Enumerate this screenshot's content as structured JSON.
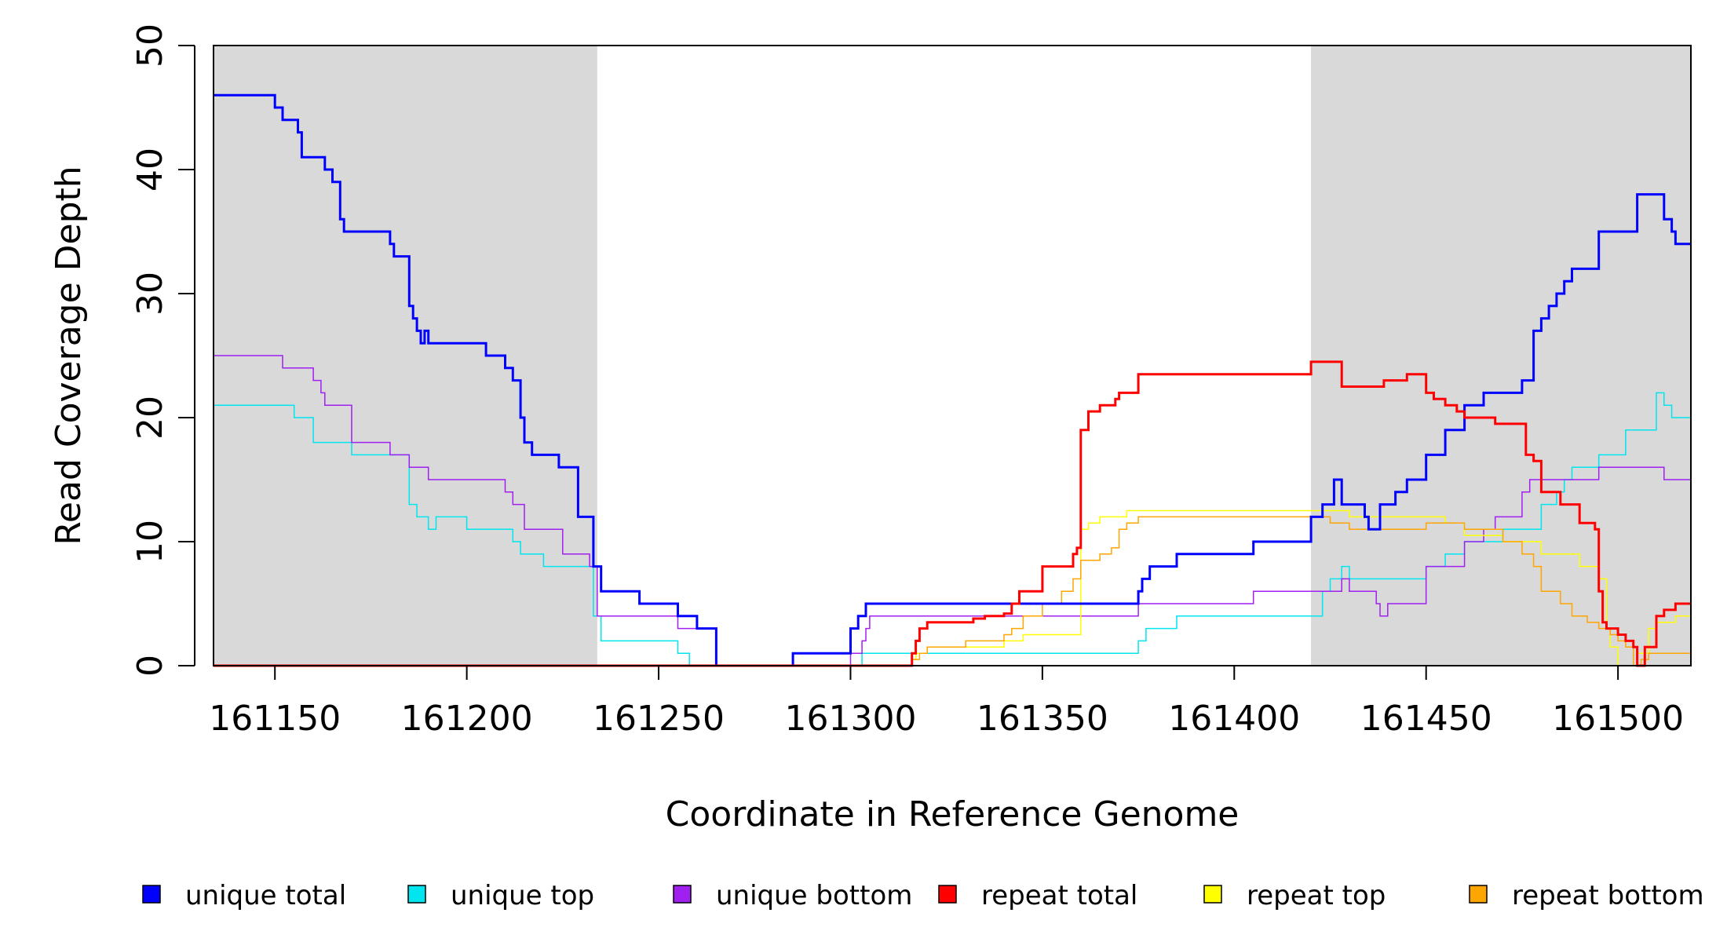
{
  "chart_data": {
    "type": "line",
    "step": true,
    "title": "",
    "xlabel": "Coordinate in Reference Genome",
    "ylabel": "Read Coverage Depth",
    "xlim": [
      161134,
      161519
    ],
    "ylim": [
      0,
      50
    ],
    "xticks": [
      161150,
      161200,
      161250,
      161300,
      161350,
      161400,
      161450,
      161500
    ],
    "yticks": [
      0,
      10,
      20,
      30,
      40,
      50
    ],
    "shaded_regions": [
      {
        "x0": 161134,
        "x1": 161234,
        "color": "#d9d9d9"
      },
      {
        "x0": 161420,
        "x1": 161519,
        "color": "#d9d9d9"
      }
    ],
    "legend_position": "bottom",
    "series": [
      {
        "name": "unique total",
        "color": "#0000ff",
        "width": 3,
        "x": [
          161134,
          161150,
          161152,
          161156,
          161157,
          161163,
          161165,
          161167,
          161168,
          161170,
          161175,
          161180,
          161181,
          161185,
          161186,
          161187,
          161188,
          161189,
          161190,
          161192,
          161205,
          161210,
          161212,
          161214,
          161215,
          161217,
          161224,
          161229,
          161233,
          161235,
          161240,
          161245,
          161250,
          161255,
          161260,
          161265,
          161270,
          161275,
          161285,
          161290,
          161300,
          161302,
          161303,
          161304,
          161305,
          161310,
          161320,
          161330,
          161340,
          161350,
          161360,
          161370,
          161375,
          161376,
          161377,
          161378,
          161380,
          161385,
          161390,
          161395,
          161400,
          161405,
          161410,
          161415,
          161420,
          161423,
          161424,
          161426,
          161428,
          161430,
          161434,
          161435,
          161438,
          161439,
          161440,
          161442,
          161445,
          161450,
          161455,
          161460,
          161465,
          161470,
          161475,
          161477,
          161478,
          161480,
          161482,
          161484,
          161486,
          161488,
          161490,
          161495,
          161500,
          161505,
          161510,
          161512,
          161514,
          161515,
          161519
        ],
        "y": [
          46,
          45,
          44,
          43,
          41,
          40,
          39,
          36,
          35,
          35,
          35,
          34,
          33,
          29,
          28,
          27,
          26,
          27,
          26,
          26,
          25,
          24,
          23,
          20,
          18,
          17,
          16,
          12,
          8,
          6,
          6,
          5,
          5,
          4,
          3,
          0,
          0,
          0,
          1,
          1,
          3,
          4,
          4,
          5,
          5,
          5,
          5,
          5,
          5,
          5,
          5,
          5,
          6,
          7,
          7,
          8,
          8,
          9,
          9,
          9,
          9,
          10,
          10,
          10,
          12,
          13,
          13,
          15,
          13,
          13,
          12,
          11,
          13,
          13,
          13,
          14,
          15,
          17,
          19,
          21,
          22,
          22,
          23,
          23,
          27,
          28,
          29,
          30,
          31,
          32,
          32,
          35,
          35,
          38,
          38,
          36,
          35,
          34,
          34
        ]
      },
      {
        "name": "unique top",
        "color": "#00e5ee",
        "width": 1.5,
        "x": [
          161134,
          161150,
          161155,
          161160,
          161165,
          161170,
          161180,
          161185,
          161187,
          161190,
          161192,
          161200,
          161210,
          161212,
          161214,
          161215,
          161220,
          161225,
          161233,
          161235,
          161240,
          161250,
          161255,
          161258,
          161265,
          161285,
          161300,
          161303,
          161304,
          161310,
          161320,
          161330,
          161340,
          161350,
          161360,
          161370,
          161375,
          161377,
          161380,
          161385,
          161390,
          161400,
          161405,
          161410,
          161415,
          161420,
          161423,
          161425,
          161428,
          161430,
          161435,
          161440,
          161445,
          161450,
          161455,
          161460,
          161470,
          161475,
          161478,
          161480,
          161484,
          161486,
          161488,
          161495,
          161502,
          161510,
          161512,
          161514,
          161519
        ],
        "y": [
          21,
          21,
          20,
          18,
          18,
          17,
          17,
          13,
          12,
          11,
          12,
          11,
          11,
          10,
          9,
          9,
          8,
          8,
          4,
          2,
          2,
          2,
          1,
          0,
          0,
          0,
          0,
          1,
          1,
          1,
          1,
          1,
          1,
          1,
          1,
          1,
          2,
          3,
          3,
          4,
          4,
          4,
          4,
          4,
          4,
          4,
          6,
          7,
          8,
          7,
          7,
          7,
          7,
          8,
          9,
          10,
          11,
          11,
          11,
          13,
          14,
          15,
          16,
          17,
          19,
          22,
          21,
          20,
          19
        ]
      },
      {
        "name": "unique bottom",
        "color": "#a020f0",
        "width": 1.5,
        "x": [
          161134,
          161150,
          161152,
          161155,
          161160,
          161162,
          161163,
          161165,
          161170,
          161175,
          161180,
          161185,
          161190,
          161200,
          161205,
          161210,
          161212,
          161214,
          161215,
          161225,
          161232,
          161234,
          161250,
          161255,
          161260,
          161265,
          161285,
          161300,
          161303,
          161304,
          161305,
          161320,
          161350,
          161375,
          161378,
          161380,
          161400,
          161405,
          161410,
          161420,
          161424,
          161427,
          161428,
          161430,
          161435,
          161437,
          161438,
          161440,
          161445,
          161450,
          161460,
          161465,
          161468,
          161470,
          161475,
          161477,
          161478,
          161480,
          161490,
          161495,
          161500,
          161505,
          161510,
          161512,
          161519
        ],
        "y": [
          25,
          25,
          24,
          24,
          23,
          22,
          21,
          21,
          18,
          18,
          17,
          16,
          15,
          15,
          15,
          14,
          13,
          13,
          11,
          9,
          8,
          4,
          4,
          3,
          3,
          0,
          0,
          1,
          2,
          3,
          4,
          4,
          4,
          5,
          5,
          5,
          5,
          6,
          6,
          6,
          6,
          6,
          7,
          6,
          6,
          5,
          4,
          5,
          5,
          8,
          10,
          11,
          12,
          12,
          14,
          15,
          15,
          15,
          15,
          16,
          16,
          16,
          16,
          15,
          15
        ]
      },
      {
        "name": "repeat total",
        "color": "#ff0000",
        "width": 3,
        "x": [
          161134,
          161314,
          161316,
          161317,
          161318,
          161320,
          161325,
          161332,
          161335,
          161340,
          161342,
          161344,
          161350,
          161352,
          161358,
          161359,
          161360,
          161362,
          161365,
          161368,
          161369,
          161370,
          161375,
          161420,
          161428,
          161439,
          161445,
          161450,
          161452,
          161455,
          161458,
          161460,
          161468,
          161470,
          161476,
          161478,
          161480,
          161482,
          161485,
          161490,
          161494,
          161495,
          161496,
          161497,
          161500,
          161502,
          161504,
          161505,
          161507,
          161510,
          161512,
          161515,
          161519
        ],
        "y": [
          0,
          0,
          1,
          2,
          3,
          3.5,
          3.5,
          3.8,
          4,
          4.2,
          5,
          6,
          8,
          8,
          9,
          9.5,
          19,
          20.5,
          21,
          21,
          21.5,
          22,
          23.5,
          24.5,
          22.5,
          23,
          23.5,
          22,
          21.5,
          21,
          20.5,
          20,
          19.5,
          19.5,
          17,
          16.5,
          14,
          14,
          13,
          11.5,
          11,
          6,
          3.5,
          3,
          2.5,
          2,
          1.5,
          0,
          1.5,
          4,
          4.5,
          5,
          5
        ]
      },
      {
        "name": "repeat top",
        "color": "#ffff00",
        "width": 1.5,
        "x": [
          161134,
          161314,
          161316,
          161317,
          161320,
          161325,
          161330,
          161340,
          161345,
          161350,
          161355,
          161358,
          161360,
          161362,
          161365,
          161370,
          161372,
          161375,
          161420,
          161425,
          161430,
          161440,
          161450,
          161455,
          161460,
          161470,
          161475,
          161480,
          161490,
          161495,
          161497,
          161498,
          161500,
          161502,
          161504,
          161505,
          161508,
          161510,
          161515,
          161519
        ],
        "y": [
          0,
          0,
          0.5,
          1,
          1.5,
          1.5,
          1.5,
          2,
          2.5,
          2.5,
          2.5,
          2.5,
          11,
          11.5,
          12,
          12,
          12.5,
          12.5,
          12.5,
          12.5,
          12,
          12,
          12,
          11.5,
          10.5,
          10,
          10,
          9,
          8,
          7,
          3,
          1.5,
          0,
          0,
          0,
          1,
          3,
          3.5,
          4,
          4
        ]
      },
      {
        "name": "repeat bottom",
        "color": "#ffa500",
        "width": 1.5,
        "x": [
          161134,
          161314,
          161316,
          161318,
          161320,
          161325,
          161330,
          161335,
          161340,
          161342,
          161345,
          161350,
          161355,
          161358,
          161360,
          161365,
          161368,
          161370,
          161372,
          161375,
          161420,
          161425,
          161430,
          161440,
          161450,
          161455,
          161460,
          161470,
          161475,
          161478,
          161480,
          161485,
          161488,
          161492,
          161495,
          161498,
          161500,
          161502,
          161504,
          161506,
          161508,
          161510,
          161515,
          161519
        ],
        "y": [
          0,
          0,
          0.5,
          1,
          1.5,
          1.5,
          2,
          2,
          2.5,
          3,
          4,
          5,
          6,
          7,
          8.5,
          9,
          9.5,
          11,
          11.5,
          12,
          12,
          11.5,
          11,
          11,
          11.5,
          11.5,
          11,
          10,
          9,
          8,
          6,
          5,
          4,
          3.5,
          3,
          2.5,
          2,
          1.5,
          0,
          0.5,
          1,
          1,
          1,
          1
        ]
      }
    ]
  }
}
